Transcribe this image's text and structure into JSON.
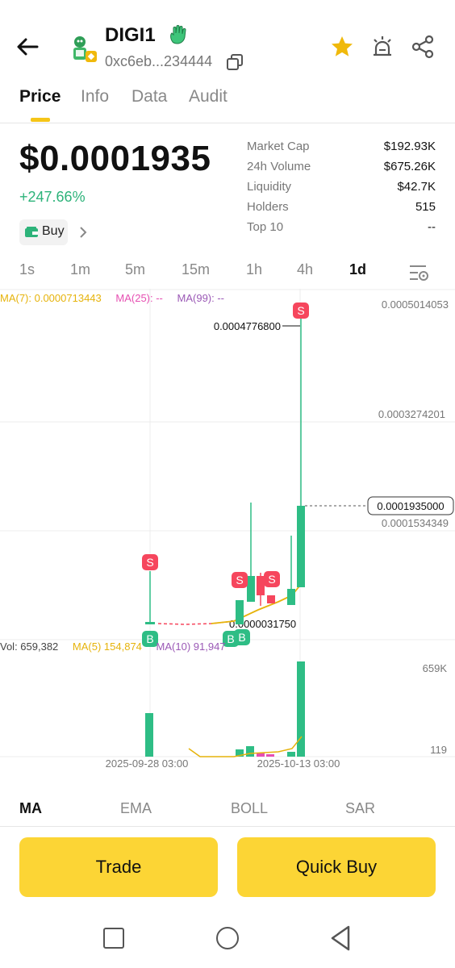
{
  "header": {
    "token_name": "DIGI1",
    "address": "0xc6eb...234444",
    "icons": [
      "back-arrow-icon",
      "token-avatar-icon",
      "hand-emoji-icon",
      "copy-icon",
      "star-icon",
      "alarm-icon",
      "share-icon"
    ]
  },
  "tabs": [
    {
      "label": "Price",
      "active": true
    },
    {
      "label": "Info"
    },
    {
      "label": "Data"
    },
    {
      "label": "Audit"
    }
  ],
  "price": {
    "value": "$0.0001935",
    "change": "+247.66%",
    "buy_label": "Buy"
  },
  "stats": [
    {
      "label": "Market Cap",
      "value": "$192.93K"
    },
    {
      "label": "24h Volume",
      "value": "$675.26K"
    },
    {
      "label": "Liquidity",
      "value": "$42.7K"
    },
    {
      "label": "Holders",
      "value": "515"
    },
    {
      "label": "Top 10",
      "value": "--"
    }
  ],
  "intervals": [
    {
      "label": "1s"
    },
    {
      "label": "1m"
    },
    {
      "label": "5m"
    },
    {
      "label": "15m"
    },
    {
      "label": "1h"
    },
    {
      "label": "4h"
    },
    {
      "label": "1d",
      "active": true
    }
  ],
  "ma": {
    "ma7": "MA(7): 0.0000713443",
    "ma25": "MA(25): --",
    "ma99": "MA(99): --"
  },
  "volume_indicators": {
    "vol": "Vol: 659,382",
    "ma5": "MA(5) 154,874",
    "ma10": "MA(10) 91,947"
  },
  "chart_data": {
    "type": "candlestick",
    "price_axis_labels": [
      "0.0005014053",
      "0.0003274201",
      "0.0001534349"
    ],
    "current_price_label": "0.0001935000",
    "high_annotation": "0.0004776800",
    "low_annotation": "0.0000031750",
    "volume_axis_labels": [
      "659K",
      "119"
    ],
    "x_labels": [
      "2025-09-28 03:00",
      "2025-10-13 03:00"
    ],
    "markers": [
      "S",
      "S",
      "S",
      "S",
      "B",
      "B",
      "B"
    ],
    "colors": {
      "up": "#2ebd85",
      "down": "#f6465d",
      "ma7": "#f0b90b",
      "ma25": "#e64fb2",
      "ma99": "#9b59b6"
    }
  },
  "bottom_tabs": [
    {
      "label": "MA",
      "active": true
    },
    {
      "label": "EMA"
    },
    {
      "label": "BOLL"
    },
    {
      "label": "SAR"
    }
  ],
  "actions": {
    "trade": "Trade",
    "quick_buy": "Quick Buy"
  },
  "colors": {
    "accent": "#fcd535",
    "positive": "#2db37a",
    "negative": "#f6465d"
  }
}
